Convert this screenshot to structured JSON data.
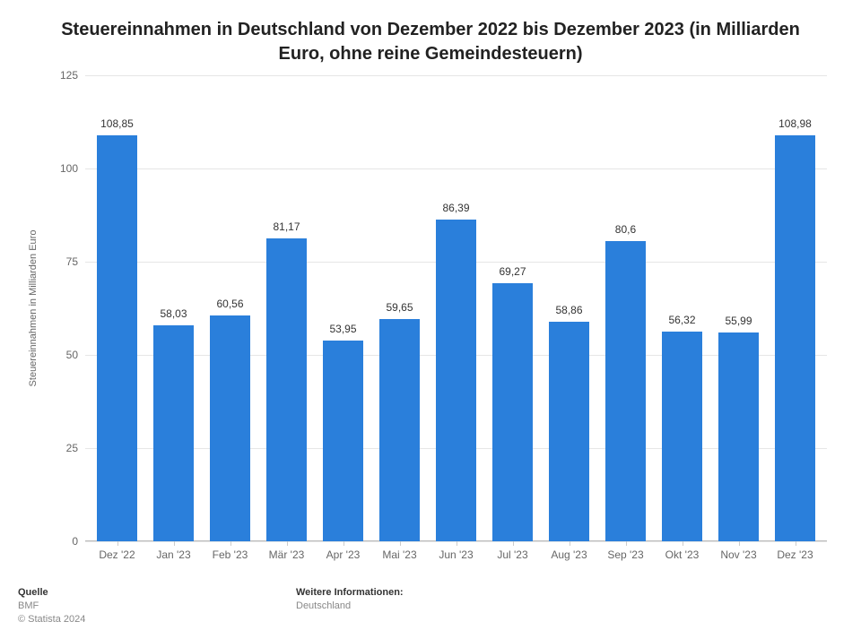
{
  "chart": {
    "type": "bar",
    "title": "Steuereinnahmen in Deutschland von Dezember 2022 bis Dezember 2023 (in Milliarden Euro, ohne reine Gemeindesteuern)",
    "title_fontsize": 20,
    "title_color": "#222222",
    "ylabel": "Steuereinnahmen in Milliarden Euro",
    "ylabel_fontsize": 11,
    "ylabel_color": "#666666",
    "categories": [
      "Dez '22",
      "Jan '23",
      "Feb '23",
      "Mär '23",
      "Apr '23",
      "Mai '23",
      "Jun '23",
      "Jul '23",
      "Aug '23",
      "Sep '23",
      "Okt '23",
      "Nov '23",
      "Dez '23"
    ],
    "values": [
      108.85,
      58.03,
      60.56,
      81.17,
      53.95,
      59.65,
      86.39,
      69.27,
      58.86,
      80.6,
      56.32,
      55.99,
      108.98
    ],
    "value_labels": [
      "108,85",
      "58,03",
      "60,56",
      "81,17",
      "53,95",
      "59,65",
      "86,39",
      "69,27",
      "58,86",
      "80,6",
      "56,32",
      "55,99",
      "108,98"
    ],
    "bar_color": "#2a7fdb",
    "bar_width": 0.72,
    "ylim": [
      0,
      125
    ],
    "yticks": [
      0,
      25,
      50,
      75,
      100,
      125
    ],
    "grid_color": "#e6e6e6",
    "axis_line_color": "#b8b8b8",
    "background_color": "#ffffff",
    "value_label_fontsize": 12,
    "value_label_color": "#333333",
    "xtick_fontsize": 12,
    "xtick_color": "#666666",
    "ytick_fontsize": 12,
    "ytick_color": "#666666"
  },
  "footer": {
    "source_heading": "Quelle",
    "source_line1": "BMF",
    "source_line2": "© Statista 2024",
    "info_heading": "Weitere Informationen:",
    "info_line1": "Deutschland",
    "heading_fontsize": 11,
    "text_fontsize": 11
  }
}
